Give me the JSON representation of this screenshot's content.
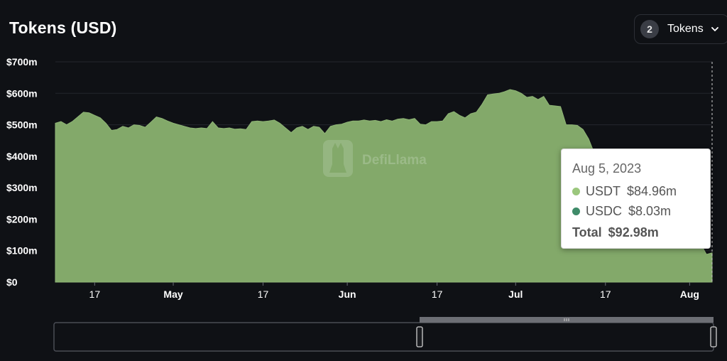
{
  "title": "Tokens (USD)",
  "tokens_button": {
    "count": "2",
    "label": "Tokens"
  },
  "watermark": "DefiLlama",
  "tooltip": {
    "date": "Aug 5, 2023",
    "rows": [
      {
        "name": "USDT",
        "value": "$84.96m",
        "color": "#9bc77d"
      },
      {
        "name": "USDC",
        "value": "$8.03m",
        "color": "#3f8b69"
      }
    ],
    "total_label": "Total",
    "total_value": "$92.98m"
  },
  "chart_data": {
    "type": "area",
    "title": "Tokens (USD)",
    "ylim": [
      0,
      700
    ],
    "y_ticks": [
      0,
      100,
      200,
      300,
      400,
      500,
      600,
      700
    ],
    "y_tick_labels": [
      "$0",
      "$100m",
      "$200m",
      "$300m",
      "$400m",
      "$500m",
      "$600m",
      "$700m"
    ],
    "x_ticks": [
      {
        "date": "2023-04-17",
        "label": "17",
        "bold": false
      },
      {
        "date": "2023-05-01",
        "label": "May",
        "bold": true
      },
      {
        "date": "2023-05-17",
        "label": "17",
        "bold": false
      },
      {
        "date": "2023-06-01",
        "label": "Jun",
        "bold": true
      },
      {
        "date": "2023-06-17",
        "label": "17",
        "bold": false
      },
      {
        "date": "2023-07-01",
        "label": "Jul",
        "bold": true
      },
      {
        "date": "2023-07-17",
        "label": "17",
        "bold": false
      },
      {
        "date": "2023-08-01",
        "label": "Aug",
        "bold": true
      }
    ],
    "x_range": [
      "2023-04-10",
      "2023-08-05"
    ],
    "fill_color": "#83a96a",
    "grid": true,
    "legend": "none",
    "series": [
      {
        "name": "Total",
        "points": [
          [
            "2023-04-10",
            505
          ],
          [
            "2023-04-11",
            510
          ],
          [
            "2023-04-12",
            500
          ],
          [
            "2023-04-13",
            510
          ],
          [
            "2023-04-14",
            525
          ],
          [
            "2023-04-15",
            540
          ],
          [
            "2023-04-16",
            538
          ],
          [
            "2023-04-17",
            530
          ],
          [
            "2023-04-18",
            522
          ],
          [
            "2023-04-19",
            505
          ],
          [
            "2023-04-20",
            482
          ],
          [
            "2023-04-21",
            485
          ],
          [
            "2023-04-22",
            495
          ],
          [
            "2023-04-23",
            490
          ],
          [
            "2023-04-24",
            500
          ],
          [
            "2023-04-25",
            498
          ],
          [
            "2023-04-26",
            492
          ],
          [
            "2023-04-27",
            508
          ],
          [
            "2023-04-28",
            525
          ],
          [
            "2023-04-29",
            520
          ],
          [
            "2023-04-30",
            512
          ],
          [
            "2023-05-01",
            505
          ],
          [
            "2023-05-02",
            500
          ],
          [
            "2023-05-03",
            495
          ],
          [
            "2023-05-04",
            490
          ],
          [
            "2023-05-05",
            488
          ],
          [
            "2023-05-06",
            490
          ],
          [
            "2023-05-07",
            488
          ],
          [
            "2023-05-08",
            510
          ],
          [
            "2023-05-09",
            490
          ],
          [
            "2023-05-10",
            488
          ],
          [
            "2023-05-11",
            490
          ],
          [
            "2023-05-12",
            486
          ],
          [
            "2023-05-13",
            487
          ],
          [
            "2023-05-14",
            485
          ],
          [
            "2023-05-15",
            510
          ],
          [
            "2023-05-16",
            512
          ],
          [
            "2023-05-17",
            510
          ],
          [
            "2023-05-18",
            512
          ],
          [
            "2023-05-19",
            515
          ],
          [
            "2023-05-20",
            505
          ],
          [
            "2023-05-21",
            490
          ],
          [
            "2023-05-22",
            475
          ],
          [
            "2023-05-23",
            490
          ],
          [
            "2023-05-24",
            495
          ],
          [
            "2023-05-25",
            485
          ],
          [
            "2023-05-26",
            495
          ],
          [
            "2023-05-27",
            492
          ],
          [
            "2023-05-28",
            472
          ],
          [
            "2023-05-29",
            495
          ],
          [
            "2023-05-30",
            500
          ],
          [
            "2023-05-31",
            502
          ],
          [
            "2023-06-01",
            508
          ],
          [
            "2023-06-02",
            512
          ],
          [
            "2023-06-03",
            512
          ],
          [
            "2023-06-04",
            515
          ],
          [
            "2023-06-05",
            512
          ],
          [
            "2023-06-06",
            514
          ],
          [
            "2023-06-07",
            510
          ],
          [
            "2023-06-08",
            516
          ],
          [
            "2023-06-09",
            512
          ],
          [
            "2023-06-10",
            518
          ],
          [
            "2023-06-11",
            520
          ],
          [
            "2023-06-12",
            516
          ],
          [
            "2023-06-13",
            520
          ],
          [
            "2023-06-14",
            502
          ],
          [
            "2023-06-15",
            500
          ],
          [
            "2023-06-16",
            510
          ],
          [
            "2023-06-17",
            510
          ],
          [
            "2023-06-18",
            512
          ],
          [
            "2023-06-19",
            535
          ],
          [
            "2023-06-20",
            542
          ],
          [
            "2023-06-21",
            530
          ],
          [
            "2023-06-22",
            522
          ],
          [
            "2023-06-23",
            535
          ],
          [
            "2023-06-24",
            540
          ],
          [
            "2023-06-25",
            565
          ],
          [
            "2023-06-26",
            595
          ],
          [
            "2023-06-27",
            598
          ],
          [
            "2023-06-28",
            600
          ],
          [
            "2023-06-29",
            605
          ],
          [
            "2023-06-30",
            612
          ],
          [
            "2023-07-01",
            608
          ],
          [
            "2023-07-02",
            600
          ],
          [
            "2023-07-03",
            587
          ],
          [
            "2023-07-04",
            590
          ],
          [
            "2023-07-05",
            580
          ],
          [
            "2023-07-06",
            590
          ],
          [
            "2023-07-07",
            562
          ],
          [
            "2023-07-08",
            560
          ],
          [
            "2023-07-09",
            558
          ],
          [
            "2023-07-10",
            500
          ],
          [
            "2023-07-11",
            500
          ],
          [
            "2023-07-12",
            498
          ],
          [
            "2023-07-13",
            485
          ],
          [
            "2023-07-14",
            455
          ],
          [
            "2023-07-15",
            410
          ],
          [
            "2023-07-16",
            380
          ],
          [
            "2023-07-17",
            360
          ],
          [
            "2023-07-18",
            340
          ],
          [
            "2023-07-19",
            320
          ],
          [
            "2023-07-20",
            300
          ],
          [
            "2023-07-21",
            280
          ],
          [
            "2023-07-22",
            262
          ],
          [
            "2023-07-23",
            245
          ],
          [
            "2023-07-24",
            230
          ],
          [
            "2023-07-25",
            215
          ],
          [
            "2023-07-26",
            200
          ],
          [
            "2023-07-27",
            185
          ],
          [
            "2023-07-28",
            168
          ],
          [
            "2023-07-29",
            150
          ],
          [
            "2023-07-30",
            138
          ],
          [
            "2023-07-31",
            125
          ],
          [
            "2023-08-01",
            115
          ],
          [
            "2023-08-02",
            108
          ],
          [
            "2023-08-03",
            120
          ],
          [
            "2023-08-04",
            88
          ],
          [
            "2023-08-05",
            93
          ]
        ]
      }
    ]
  }
}
